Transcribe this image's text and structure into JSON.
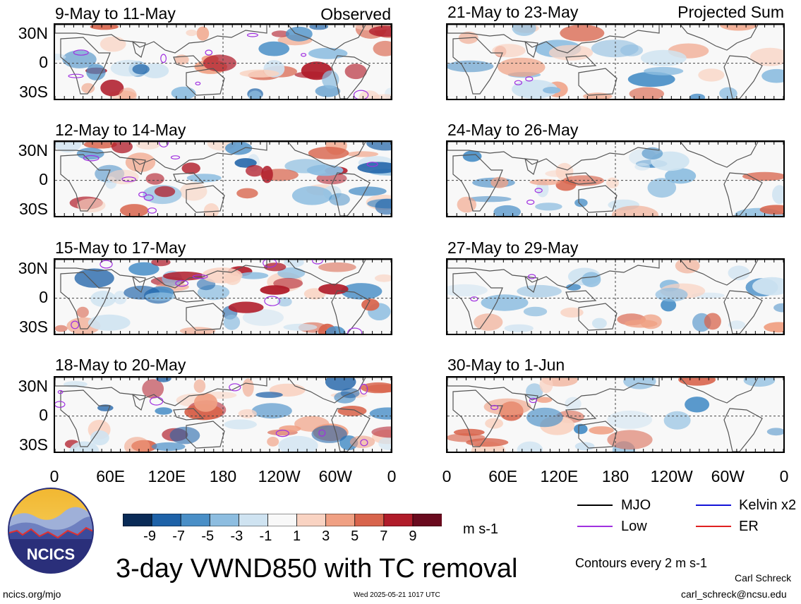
{
  "header": {
    "observed_label": "Observed",
    "projected_label": "Projected Sum"
  },
  "panels_left": [
    {
      "title": "9-May to 11-May"
    },
    {
      "title": "12-May to 14-May"
    },
    {
      "title": "15-May to 17-May"
    },
    {
      "title": "18-May to 20-May"
    }
  ],
  "panels_right": [
    {
      "title": "21-May to 23-May"
    },
    {
      "title": "24-May to 26-May"
    },
    {
      "title": "27-May to 29-May"
    },
    {
      "title": "30-May to 1-Jun"
    }
  ],
  "axes": {
    "lat_ticks": [
      "30N",
      "0",
      "30S"
    ],
    "lon_ticks": [
      "0",
      "60E",
      "120E",
      "180",
      "120W",
      "60W",
      "0"
    ]
  },
  "colorbar": {
    "tick_labels": [
      "-9",
      "-7",
      "-5",
      "-3",
      "-1",
      "1",
      "3",
      "5",
      "7",
      "9"
    ],
    "colors": [
      "#0a2b57",
      "#1e62a8",
      "#4a8fc7",
      "#8dbde0",
      "#cfe3f1",
      "#f8f8f8",
      "#f9d3c2",
      "#f0a083",
      "#d8644c",
      "#b01c2a",
      "#6a0a1e"
    ],
    "units": "m s-1"
  },
  "legend": {
    "items": [
      {
        "label": "MJO",
        "color": "#000000"
      },
      {
        "label": "Kelvin x2",
        "color": "#1414d8"
      },
      {
        "label": "Low",
        "color": "#a030e0"
      },
      {
        "label": "ER",
        "color": "#e02020"
      }
    ],
    "contour_note": "Contours every 2 m s-1"
  },
  "logo": {
    "text": "NCICS"
  },
  "main_title": "3-day VWND850 with TC removal",
  "footer": {
    "site": "ncics.org/mjo",
    "timestamp": "Wed 2025-05-21 1017 UTC",
    "author": "Carl Schreck",
    "email": "carl_schreck@ncsu.edu"
  }
}
